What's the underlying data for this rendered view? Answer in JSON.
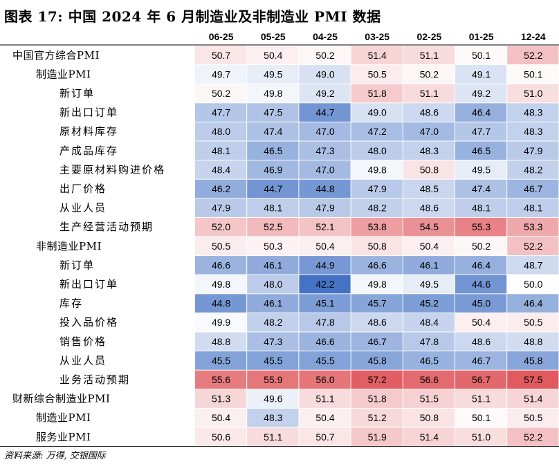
{
  "title": "图表 17: 中国 2024 年 6 月制造业及非制造业 PMI 数据",
  "source": "资料来源: 万得, 交银国际",
  "colors": {
    "low": "#4472c4",
    "mid": "#ffffff",
    "high": "#e05a5f"
  },
  "chart_data": {
    "type": "heatmap",
    "title": "图表 17: 中国 2024 年 6 月制造业及非制造业 PMI 数据",
    "columns": [
      "06-25",
      "05-25",
      "04-25",
      "03-25",
      "02-25",
      "01-25",
      "12-24"
    ],
    "rows": [
      {
        "label": "中国官方综合PMI",
        "level": 0,
        "values": [
          50.7,
          50.4,
          50.2,
          51.4,
          51.1,
          50.1,
          52.2
        ]
      },
      {
        "label": "制造业PMI",
        "level": 1,
        "values": [
          49.7,
          49.5,
          49.0,
          50.5,
          50.2,
          49.1,
          50.1
        ]
      },
      {
        "label": "新订单",
        "level": 2,
        "values": [
          50.2,
          49.8,
          49.2,
          51.8,
          51.1,
          49.2,
          51.0
        ]
      },
      {
        "label": "新出口订单",
        "level": 2,
        "values": [
          47.7,
          47.5,
          44.7,
          49.0,
          48.6,
          46.4,
          48.3
        ]
      },
      {
        "label": "原材料库存",
        "level": 2,
        "values": [
          48.0,
          47.4,
          47.0,
          47.2,
          47.0,
          47.7,
          48.3
        ]
      },
      {
        "label": "产成品库存",
        "level": 2,
        "values": [
          48.1,
          46.5,
          47.3,
          48.0,
          48.3,
          46.5,
          47.9
        ]
      },
      {
        "label": "主要原材料购进价格",
        "level": 2,
        "values": [
          48.4,
          46.9,
          47.0,
          49.8,
          50.8,
          49.5,
          48.2
        ]
      },
      {
        "label": "出厂价格",
        "level": 2,
        "values": [
          46.2,
          44.7,
          44.8,
          47.9,
          48.5,
          47.4,
          46.7
        ]
      },
      {
        "label": "从业人员",
        "level": 2,
        "values": [
          47.9,
          48.1,
          47.9,
          48.2,
          48.6,
          48.1,
          48.1
        ]
      },
      {
        "label": "生产经营活动预期",
        "level": 2,
        "values": [
          52.0,
          52.5,
          52.1,
          53.8,
          54.5,
          55.3,
          53.3
        ]
      },
      {
        "label": "非制造业PMI",
        "level": 1,
        "values": [
          50.5,
          50.3,
          50.4,
          50.8,
          50.4,
          50.2,
          52.2
        ]
      },
      {
        "label": "新订单",
        "level": 2,
        "values": [
          46.6,
          46.1,
          44.9,
          46.6,
          46.1,
          46.4,
          48.7
        ]
      },
      {
        "label": "新出口订单",
        "level": 2,
        "values": [
          49.8,
          48.0,
          42.2,
          49.8,
          49.5,
          44.6,
          50.0
        ]
      },
      {
        "label": "库存",
        "level": 2,
        "values": [
          44.8,
          46.1,
          45.1,
          45.7,
          45.2,
          45.0,
          46.4
        ]
      },
      {
        "label": "投入品价格",
        "level": 2,
        "values": [
          49.9,
          48.2,
          47.8,
          48.6,
          48.4,
          50.4,
          50.5
        ]
      },
      {
        "label": "销售价格",
        "level": 2,
        "values": [
          48.8,
          47.3,
          46.6,
          46.7,
          47.8,
          48.6,
          48.8
        ]
      },
      {
        "label": "从业人员",
        "level": 2,
        "values": [
          45.5,
          45.5,
          45.5,
          45.8,
          46.5,
          46.7,
          45.8
        ]
      },
      {
        "label": "业务活动预期",
        "level": 2,
        "values": [
          55.6,
          55.9,
          56.0,
          57.2,
          56.6,
          56.7,
          57.5
        ]
      },
      {
        "label": "财新综合制造业PMI",
        "level": 0,
        "values": [
          51.3,
          49.6,
          51.1,
          51.8,
          51.5,
          51.1,
          51.4
        ]
      },
      {
        "label": "制造业PMI",
        "level": 1,
        "values": [
          50.4,
          48.3,
          50.4,
          51.2,
          50.8,
          50.1,
          50.5
        ]
      },
      {
        "label": "服务业PMI",
        "level": 1,
        "values": [
          50.6,
          51.1,
          50.7,
          51.9,
          51.4,
          51.0,
          52.2
        ]
      }
    ]
  }
}
